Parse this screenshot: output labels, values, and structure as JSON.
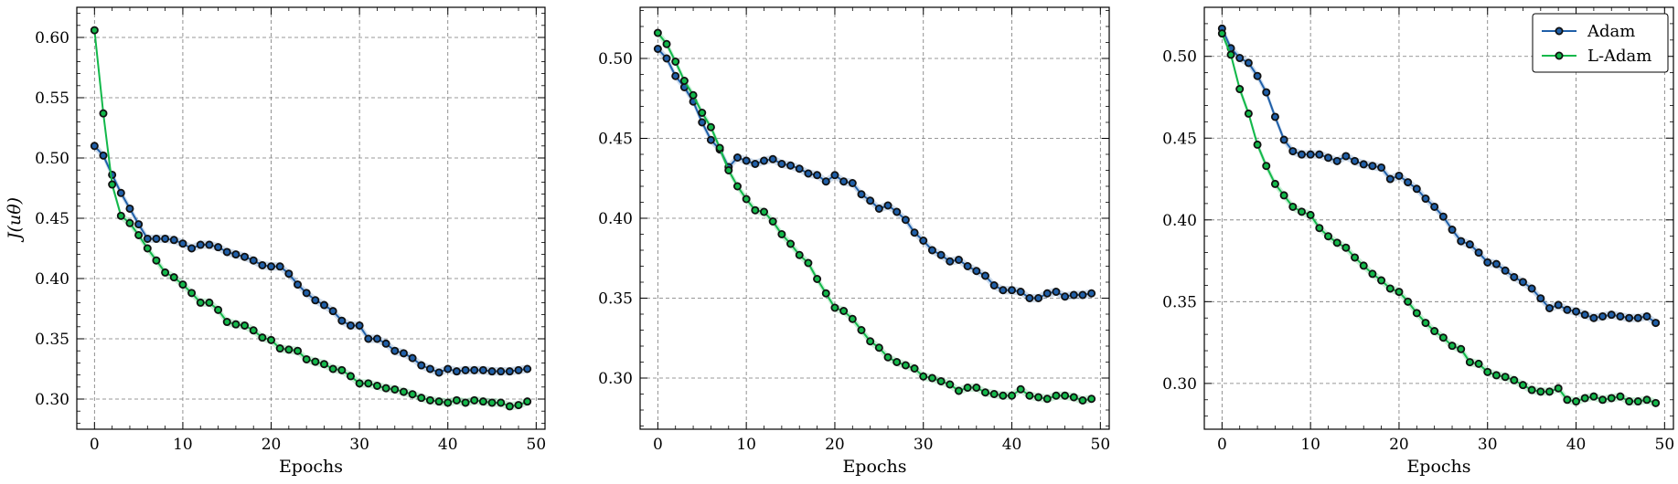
{
  "colors": {
    "adam": "#1f5fa8",
    "ladam": "#12b84a",
    "marker_edge": "#111111",
    "grid": "#777777"
  },
  "legend": {
    "location": "upper right",
    "panel": 3
  },
  "chart_data": [
    {
      "type": "line",
      "xlabel": "Epochs",
      "ylabel": "J(uθ)",
      "xlim": [
        -2,
        51
      ],
      "ylim": [
        0.275,
        0.625
      ],
      "xticks": [
        "0",
        "10",
        "20",
        "30",
        "40",
        "50"
      ],
      "yticks": [
        "0.30",
        "0.35",
        "0.40",
        "0.45",
        "0.50",
        "0.55",
        "0.60"
      ],
      "grid": true,
      "series": [
        {
          "name": "Adam",
          "x_start": 0,
          "x_step": 1,
          "values": [
            0.51,
            0.502,
            0.486,
            0.471,
            0.458,
            0.445,
            0.433,
            0.433,
            0.433,
            0.432,
            0.429,
            0.425,
            0.428,
            0.428,
            0.426,
            0.422,
            0.42,
            0.418,
            0.415,
            0.411,
            0.41,
            0.41,
            0.404,
            0.395,
            0.388,
            0.382,
            0.378,
            0.373,
            0.365,
            0.361,
            0.361,
            0.35,
            0.35,
            0.346,
            0.34,
            0.338,
            0.334,
            0.328,
            0.325,
            0.322,
            0.325,
            0.323,
            0.324,
            0.324,
            0.324,
            0.323,
            0.323,
            0.323,
            0.324,
            0.325
          ]
        },
        {
          "name": "L-Adam",
          "x_start": 0,
          "x_step": 1,
          "values": [
            0.606,
            0.537,
            0.478,
            0.452,
            0.446,
            0.436,
            0.425,
            0.415,
            0.405,
            0.401,
            0.395,
            0.388,
            0.38,
            0.38,
            0.374,
            0.364,
            0.362,
            0.361,
            0.357,
            0.351,
            0.349,
            0.342,
            0.341,
            0.34,
            0.333,
            0.331,
            0.329,
            0.325,
            0.324,
            0.319,
            0.313,
            0.313,
            0.311,
            0.309,
            0.308,
            0.306,
            0.304,
            0.301,
            0.299,
            0.298,
            0.297,
            0.299,
            0.297,
            0.299,
            0.298,
            0.297,
            0.297,
            0.294,
            0.295,
            0.298
          ]
        }
      ]
    },
    {
      "type": "line",
      "xlabel": "Epochs",
      "ylabel": "",
      "xlim": [
        -2,
        51
      ],
      "ylim": [
        0.268,
        0.532
      ],
      "xticks": [
        "0",
        "10",
        "20",
        "30",
        "40",
        "50"
      ],
      "yticks": [
        "0.30",
        "0.35",
        "0.40",
        "0.45",
        "0.50"
      ],
      "grid": true,
      "series": [
        {
          "name": "Adam",
          "x_start": 0,
          "x_step": 1,
          "values": [
            0.506,
            0.5,
            0.489,
            0.482,
            0.473,
            0.46,
            0.449,
            0.443,
            0.432,
            0.438,
            0.436,
            0.434,
            0.436,
            0.437,
            0.434,
            0.433,
            0.431,
            0.428,
            0.427,
            0.423,
            0.427,
            0.423,
            0.422,
            0.415,
            0.411,
            0.406,
            0.408,
            0.404,
            0.399,
            0.391,
            0.386,
            0.38,
            0.377,
            0.373,
            0.374,
            0.37,
            0.367,
            0.364,
            0.358,
            0.355,
            0.355,
            0.354,
            0.35,
            0.35,
            0.353,
            0.354,
            0.351,
            0.352,
            0.352,
            0.353
          ]
        },
        {
          "name": "L-Adam",
          "x_start": 0,
          "x_step": 1,
          "values": [
            0.516,
            0.509,
            0.498,
            0.486,
            0.477,
            0.466,
            0.457,
            0.444,
            0.43,
            0.42,
            0.412,
            0.405,
            0.404,
            0.398,
            0.39,
            0.384,
            0.377,
            0.372,
            0.362,
            0.353,
            0.344,
            0.342,
            0.337,
            0.33,
            0.323,
            0.319,
            0.313,
            0.31,
            0.308,
            0.306,
            0.301,
            0.3,
            0.298,
            0.296,
            0.292,
            0.294,
            0.294,
            0.291,
            0.29,
            0.289,
            0.289,
            0.293,
            0.289,
            0.288,
            0.287,
            0.289,
            0.289,
            0.288,
            0.286,
            0.287
          ]
        }
      ]
    },
    {
      "type": "line",
      "xlabel": "Epochs",
      "ylabel": "",
      "xlim": [
        -2,
        51
      ],
      "ylim": [
        0.272,
        0.53
      ],
      "xticks": [
        "0",
        "10",
        "20",
        "30",
        "40",
        "50"
      ],
      "yticks": [
        "0.30",
        "0.35",
        "0.40",
        "0.45",
        "0.50"
      ],
      "grid": true,
      "series": [
        {
          "name": "Adam",
          "x_start": 0,
          "x_step": 1,
          "values": [
            0.517,
            0.505,
            0.499,
            0.496,
            0.488,
            0.478,
            0.463,
            0.449,
            0.442,
            0.44,
            0.44,
            0.44,
            0.438,
            0.436,
            0.439,
            0.436,
            0.434,
            0.433,
            0.432,
            0.425,
            0.427,
            0.423,
            0.419,
            0.413,
            0.408,
            0.402,
            0.394,
            0.387,
            0.385,
            0.38,
            0.374,
            0.373,
            0.369,
            0.365,
            0.362,
            0.358,
            0.352,
            0.346,
            0.348,
            0.345,
            0.344,
            0.342,
            0.34,
            0.341,
            0.342,
            0.341,
            0.34,
            0.34,
            0.341,
            0.337
          ]
        },
        {
          "name": "L-Adam",
          "x_start": 0,
          "x_step": 1,
          "values": [
            0.514,
            0.501,
            0.48,
            0.465,
            0.446,
            0.433,
            0.422,
            0.415,
            0.408,
            0.405,
            0.403,
            0.395,
            0.39,
            0.386,
            0.383,
            0.377,
            0.372,
            0.367,
            0.363,
            0.358,
            0.356,
            0.35,
            0.343,
            0.337,
            0.332,
            0.328,
            0.323,
            0.321,
            0.313,
            0.312,
            0.307,
            0.305,
            0.304,
            0.302,
            0.299,
            0.296,
            0.295,
            0.295,
            0.297,
            0.29,
            0.289,
            0.291,
            0.292,
            0.29,
            0.291,
            0.292,
            0.289,
            0.289,
            0.29,
            0.288
          ]
        }
      ]
    }
  ]
}
